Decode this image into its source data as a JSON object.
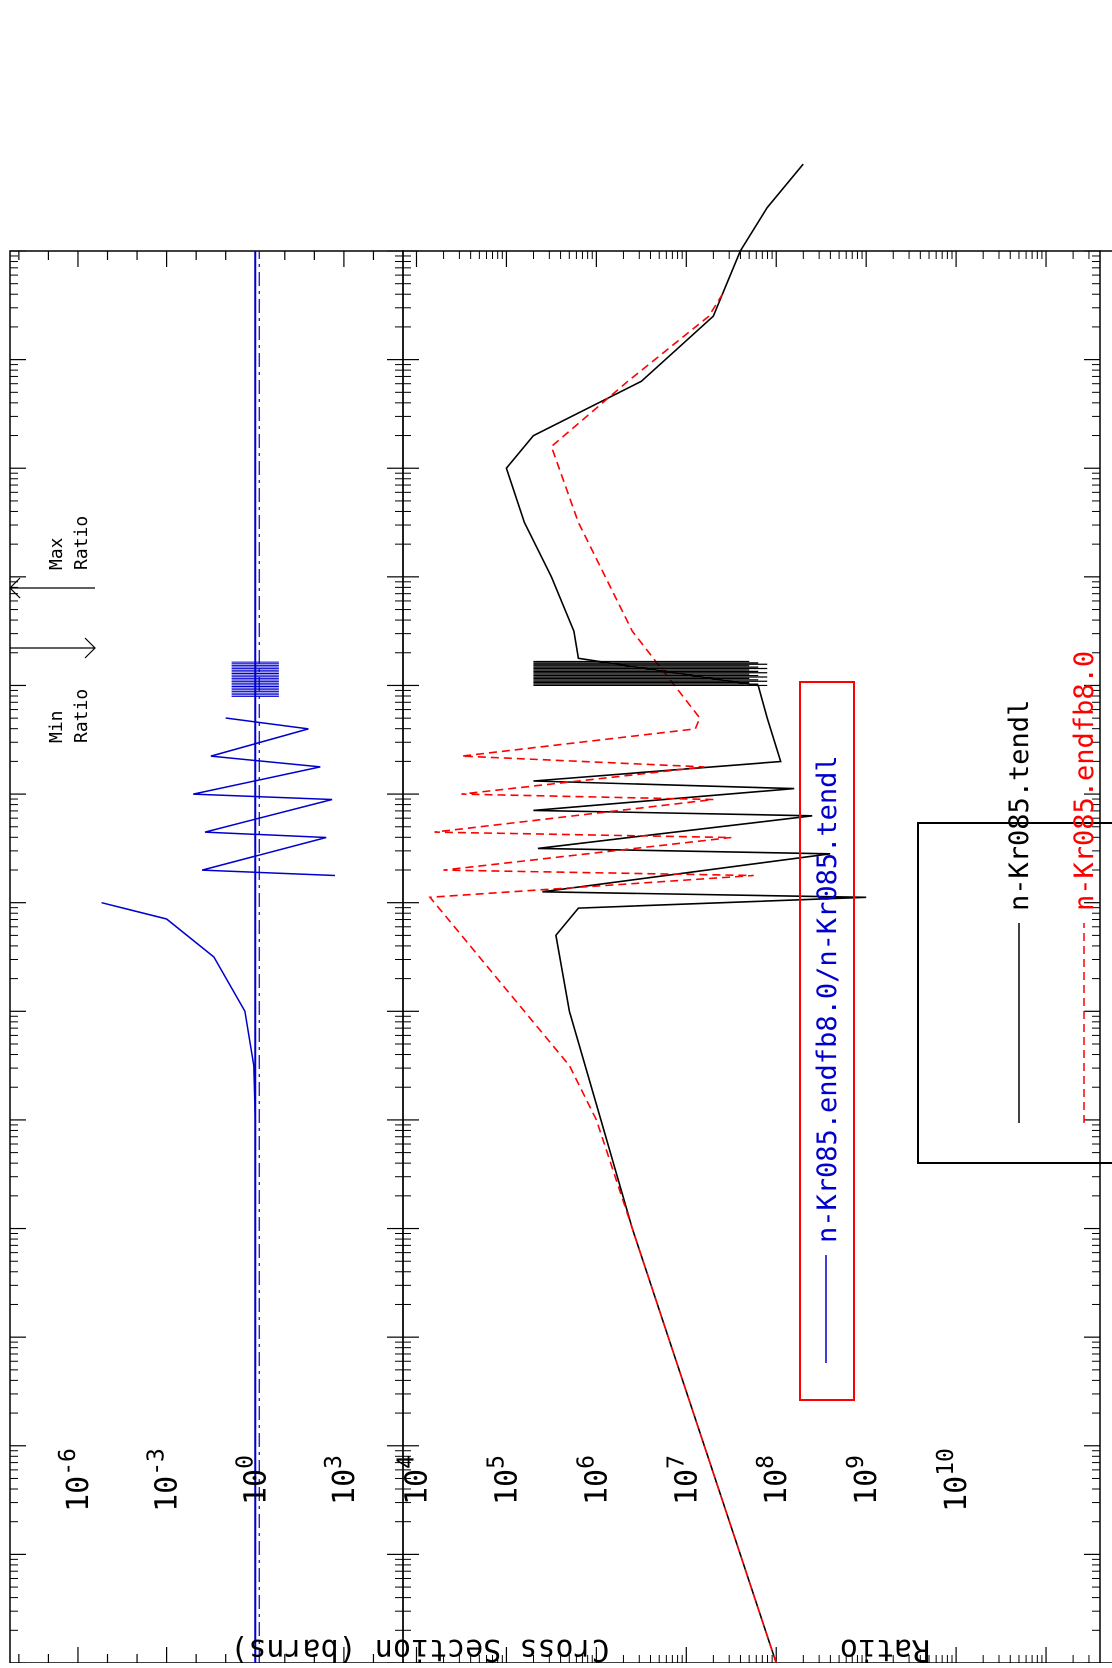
{
  "chart_data": [
    {
      "panel": "cross-section",
      "type": "line",
      "ylabel": "Cross Section (barns)",
      "y_scale": "log",
      "ylim": [
        1000,
        100000000000
      ],
      "y_ticks": [
        {
          "base": "10",
          "exp": "4",
          "value": 10000
        },
        {
          "base": "10",
          "exp": "5",
          "value": 100000
        },
        {
          "base": "10",
          "exp": "6",
          "value": 1000000
        },
        {
          "base": "10",
          "exp": "7",
          "value": 10000000
        },
        {
          "base": "10",
          "exp": "8",
          "value": 100000000
        },
        {
          "base": "10",
          "exp": "9",
          "value": 1000000000
        },
        {
          "base": "10",
          "exp": "10",
          "value": 10000000000
        }
      ],
      "x_scale": "log",
      "x_decades": 13,
      "legend": {
        "placement": "top-left"
      },
      "series": [
        {
          "name": "n-Kr085.tendl",
          "color": "#000000",
          "style": "solid",
          "smooth_exponents": [
            [
              0.0,
              8.0
            ],
            [
              1.0,
              7.6
            ],
            [
              2.0,
              7.2
            ],
            [
              3.0,
              6.8
            ],
            [
              4.0,
              6.4
            ],
            [
              5.0,
              6.05
            ],
            [
              6.0,
              5.7
            ],
            [
              6.7,
              5.55
            ],
            [
              6.95,
              5.8
            ]
          ],
          "resonance_exponents": [
            [
              7.05,
              9.0
            ],
            [
              7.1,
              5.4
            ],
            [
              7.45,
              8.6
            ],
            [
              7.5,
              5.35
            ],
            [
              7.8,
              8.4
            ],
            [
              7.85,
              5.3
            ],
            [
              8.05,
              8.2
            ],
            [
              8.12,
              5.3
            ],
            [
              8.3,
              8.05
            ],
            [
              8.7,
              7.9
            ],
            [
              9.0,
              7.8
            ]
          ],
          "tail_exponents": [
            [
              9.25,
              5.8
            ],
            [
              9.5,
              5.75
            ],
            [
              10.0,
              5.5
            ],
            [
              10.5,
              5.2
            ],
            [
              11.0,
              5.0
            ],
            [
              11.3,
              5.3
            ],
            [
              11.8,
              6.5
            ],
            [
              12.1,
              6.9
            ],
            [
              12.4,
              7.3
            ],
            [
              12.7,
              7.45
            ],
            [
              13.0,
              7.6
            ],
            [
              13.4,
              7.9
            ],
            [
              13.8,
              8.3
            ]
          ]
        },
        {
          "name": "n-Kr085.endfb8.0",
          "color": "#ff0000",
          "style": "dashed",
          "smooth_exponents": [
            [
              0.0,
              8.0
            ],
            [
              3.0,
              6.8
            ],
            [
              4.0,
              6.4
            ],
            [
              5.0,
              6.0
            ],
            [
              5.5,
              5.7
            ],
            [
              6.0,
              5.2
            ],
            [
              6.5,
              4.7
            ],
            [
              6.9,
              4.3
            ],
            [
              7.05,
              4.15
            ]
          ],
          "resonance_exponents": [
            [
              7.25,
              7.75
            ],
            [
              7.3,
              4.3
            ],
            [
              7.6,
              7.5
            ],
            [
              7.65,
              4.2
            ],
            [
              7.95,
              7.3
            ],
            [
              8.0,
              4.5
            ],
            [
              8.25,
              7.2
            ],
            [
              8.35,
              4.5
            ],
            [
              8.6,
              7.1
            ]
          ],
          "tail_exponents": [
            [
              8.7,
              7.15
            ],
            [
              9.5,
              6.4
            ],
            [
              10.5,
              5.8
            ],
            [
              11.2,
              5.5
            ],
            [
              11.8,
              6.35
            ],
            [
              12.1,
              6.8
            ],
            [
              12.4,
              7.25
            ],
            [
              12.6,
              7.4
            ]
          ]
        }
      ]
    },
    {
      "panel": "ratio",
      "type": "line",
      "ylabel": "Ratio",
      "y_scale": "log",
      "ylim": [
        1e-08,
        100000.0
      ],
      "y_ticks": [
        {
          "base": "10",
          "exp": "-6",
          "value": 1e-06
        },
        {
          "base": "10",
          "exp": "-3",
          "value": 0.001
        },
        {
          "base": "10",
          "exp": "0",
          "value": 1
        },
        {
          "base": "10",
          "exp": "3",
          "value": 1000
        }
      ],
      "legend": {
        "placement": "top-left"
      },
      "series": [
        {
          "name": "n-Kr085.endfb8.0/n-Kr085.tendl",
          "color": "#0000cc",
          "style": "solid",
          "baseline_value": 1,
          "dip_profile": [
            [
              0.0,
              0.0
            ],
            [
              5.0,
              0.0
            ],
            [
              5.5,
              -0.05
            ],
            [
              6.0,
              -0.35
            ],
            [
              6.5,
              -1.4
            ],
            [
              6.85,
              -3.0
            ],
            [
              7.0,
              -5.2
            ]
          ],
          "spike_exponents": [
            [
              7.25,
              2.7
            ],
            [
              7.3,
              -1.8
            ],
            [
              7.6,
              2.4
            ],
            [
              7.65,
              -1.7
            ],
            [
              7.95,
              2.6
            ],
            [
              8.0,
              -2.1
            ],
            [
              8.25,
              2.2
            ],
            [
              8.35,
              -1.5
            ],
            [
              8.6,
              1.8
            ],
            [
              8.7,
              -1.0
            ]
          ]
        },
        {
          "name": "",
          "color": "#0000cc",
          "style": "dash-dot",
          "reference_value": 1
        }
      ]
    }
  ],
  "annotations": {
    "min_label_1": "Min",
    "min_label_2": "Ratio",
    "max_label_1": "Max",
    "max_label_2": "Ratio"
  },
  "colors": {
    "axis": "#000000",
    "ratio_legend_frame": "#ff0000"
  }
}
